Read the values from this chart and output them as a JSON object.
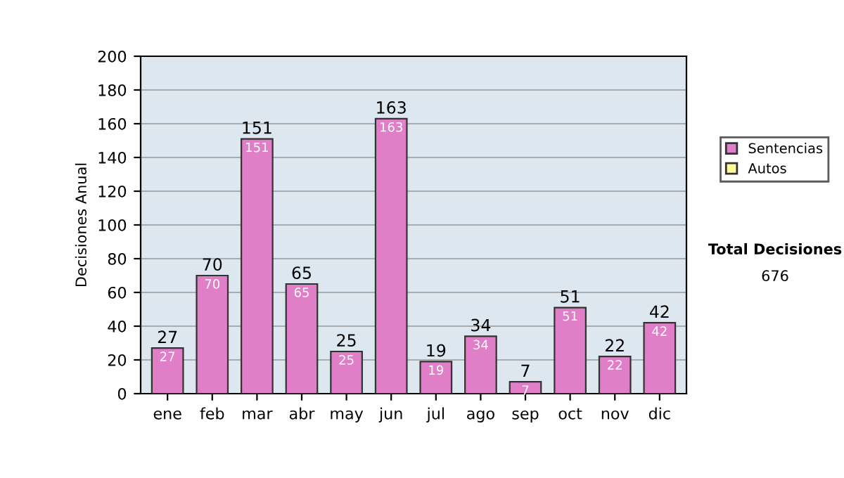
{
  "chart_data": {
    "type": "bar",
    "ylabel": "Decisiones Anual",
    "categories": [
      "ene",
      "feb",
      "mar",
      "abr",
      "may",
      "jun",
      "jul",
      "ago",
      "sep",
      "oct",
      "nov",
      "dic"
    ],
    "series": [
      {
        "name": "Sentencias",
        "color": "#e07fc8",
        "values": [
          27,
          70,
          151,
          65,
          25,
          163,
          19,
          34,
          7,
          51,
          22,
          42
        ],
        "value_labels": [
          "27",
          "70",
          "151",
          "65",
          "25",
          "163",
          "19",
          "34",
          "7",
          "51",
          "22",
          "42"
        ]
      },
      {
        "name": "Autos",
        "color": "#ffff99",
        "values": [
          null,
          null,
          null,
          null,
          null,
          null,
          null,
          null,
          null,
          null,
          null,
          null
        ]
      }
    ],
    "totals": [
      "27",
      "70",
      "151",
      "65",
      "25",
      "163",
      "19",
      "34",
      "7",
      "51",
      "22",
      "42"
    ],
    "ylim": [
      0,
      200
    ],
    "yticks": [
      0,
      20,
      40,
      60,
      80,
      100,
      120,
      140,
      160,
      180,
      200
    ],
    "grid": "y",
    "legend": "right",
    "annotations": [
      "Total Decisiones",
      "676"
    ]
  }
}
